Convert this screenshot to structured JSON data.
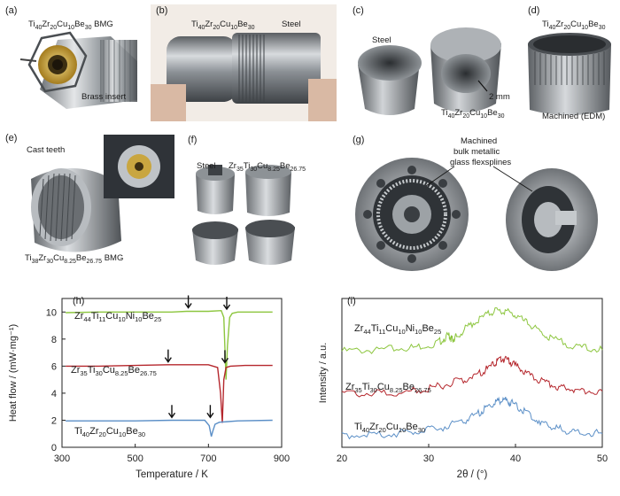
{
  "panels": {
    "a": {
      "label": "(a)",
      "title_html": "Ti<sub>40</sub>Zr<sub>20</sub>Cu<sub>10</sub>Be<sub>30</sub> BMG",
      "insert_label": "Brass insert"
    },
    "b": {
      "label": "(b)",
      "alloy_html": "Ti<sub>40</sub>Zr<sub>20</sub>Cu<sub>10</sub>Be<sub>30</sub>",
      "steel_label": "Steel"
    },
    "c": {
      "label": "(c)",
      "steel_label": "Steel",
      "alloy_html": "Ti<sub>40</sub>Zr<sub>20</sub>Cu<sub>10</sub>Be<sub>30</sub>",
      "dimension": "2 mm"
    },
    "d": {
      "label": "(d)",
      "alloy_html": "Ti<sub>40</sub>Zr<sub>20</sub>Cu<sub>10</sub>Be<sub>30</sub>",
      "note": "Machined (EDM)"
    },
    "e": {
      "label": "(e)",
      "note": "Cast teeth",
      "alloy_html": "Ti<sub>38</sub>Zr<sub>30</sub>Cu<sub>8.25</sub>Be<sub>26.75</sub> BMG"
    },
    "f": {
      "label": "(f)",
      "steel_label": "Steel",
      "alloy_html": "Zr<sub>35</sub>Ti<sub>30</sub>Cu<sub>8.25</sub>Be<sub>26.75</sub>"
    },
    "g": {
      "label": "(g)",
      "note_line1": "Machined",
      "note_line2": "bulk metallic",
      "note_line3": "glass flexsplines"
    },
    "h": {
      "label": "(h)"
    },
    "i": {
      "label": "(i)"
    }
  },
  "colors": {
    "green": "#8dc63f",
    "red": "#b5272d",
    "blue": "#5b8fc7",
    "brass": "#c9a640",
    "steel": "#a9adb2"
  },
  "chart_data": [
    {
      "type": "line",
      "panel": "h",
      "xlabel": "Temperature / K",
      "ylabel": "Heat flow / (mW·mg⁻¹)",
      "xlim": [
        300,
        900
      ],
      "ylim": [
        0,
        11
      ],
      "xticks": [
        300,
        500,
        700,
        900
      ],
      "yticks": [
        0,
        2,
        4,
        6,
        8,
        10
      ],
      "series": [
        {
          "name_html": "Zr<sub>44</sub>Ti<sub>11</sub>Cu<sub>10</sub>Ni<sub>10</sub>Be<sub>25</sub>",
          "color": "#8dc63f",
          "x": [
            310,
            400,
            500,
            600,
            640,
            700,
            735,
            742,
            748,
            752,
            758,
            765,
            780,
            820,
            875
          ],
          "y": [
            9.95,
            10.0,
            10.0,
            10.0,
            10.05,
            10.05,
            10.1,
            9.6,
            5.0,
            7.5,
            9.6,
            9.9,
            10.0,
            10.0,
            10.0
          ],
          "arrows_x": [
            645,
            750
          ]
        },
        {
          "name_html": "Zr<sub>35</sub>Ti<sub>30</sub>Cu<sub>8.25</sub>Be<sub>26.75</sub>",
          "color": "#b5272d",
          "x": [
            310,
            400,
            500,
            590,
            650,
            700,
            725,
            733,
            738,
            742,
            748,
            760,
            800,
            875
          ],
          "y": [
            6.0,
            6.0,
            6.05,
            6.1,
            6.1,
            6.1,
            5.9,
            4.0,
            1.8,
            5.0,
            5.9,
            6.0,
            6.05,
            6.05
          ],
          "arrows_x": [
            590,
            745
          ]
        },
        {
          "name_html": "Ti<sub>40</sub>Zr<sub>20</sub>Cu<sub>10</sub>Be<sub>30</sub>",
          "color": "#5b8fc7",
          "x": [
            310,
            400,
            500,
            600,
            650,
            690,
            702,
            708,
            712,
            718,
            730,
            780,
            875
          ],
          "y": [
            1.95,
            1.95,
            1.95,
            2.0,
            2.0,
            2.0,
            1.6,
            0.8,
            1.2,
            1.7,
            1.85,
            1.95,
            2.0
          ],
          "arrows_x": [
            600,
            705
          ]
        }
      ]
    },
    {
      "type": "line",
      "panel": "i",
      "xlabel": "2θ / (°)",
      "ylabel": "Intensity / a.u.",
      "xlim": [
        20,
        50
      ],
      "xticks": [
        20,
        30,
        40,
        50
      ],
      "series": [
        {
          "name_html": "Zr<sub>44</sub>Ti<sub>11</sub>Cu<sub>10</sub>Ni<sub>10</sub>Be<sub>25</sub>",
          "color": "#8dc63f",
          "x": [
            20,
            24,
            28,
            31,
            32.3,
            32.7,
            33.2,
            35,
            37,
            38.5,
            40,
            42,
            44,
            47,
            50
          ],
          "y": [
            7.9,
            8.0,
            8.2,
            8.6,
            9.3,
            8.9,
            9.2,
            10.3,
            11.2,
            11.5,
            11.0,
            10.0,
            9.0,
            8.3,
            8.0
          ]
        },
        {
          "name_html": "Zr<sub>35</sub>Ti<sub>30</sub>Cu<sub>8.25</sub>Be<sub>26.75</sub>",
          "color": "#b5272d",
          "x": [
            20,
            24,
            28,
            31,
            34,
            36,
            37.5,
            38.5,
            39.5,
            41,
            43,
            45,
            47,
            50
          ],
          "y": [
            4.2,
            4.2,
            4.4,
            4.8,
            5.4,
            6.0,
            6.7,
            7.3,
            6.9,
            6.1,
            5.3,
            4.8,
            4.5,
            4.4
          ]
        },
        {
          "name_html": "Ti<sub>40</sub>Zr<sub>20</sub>Cu<sub>10</sub>Be<sub>30</sub>",
          "color": "#5b8fc7",
          "x": [
            20,
            24,
            28,
            31,
            34,
            36,
            37.5,
            38.5,
            39.5,
            41,
            43,
            45,
            47,
            50
          ],
          "y": [
            0.6,
            0.6,
            0.8,
            1.1,
            1.8,
            2.6,
            3.3,
            3.7,
            3.4,
            2.6,
            1.7,
            1.1,
            0.8,
            0.7
          ]
        }
      ]
    }
  ]
}
